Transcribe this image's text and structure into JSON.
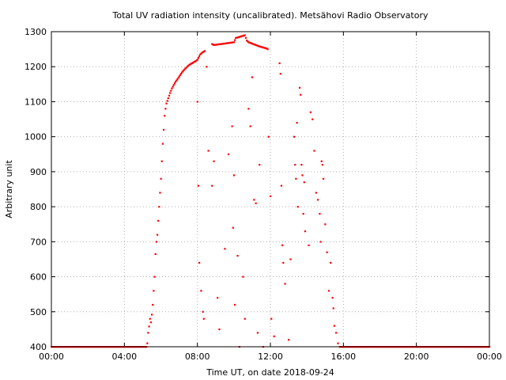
{
  "chart_data": {
    "type": "scatter",
    "title": "Total UV radiation intensity (uncalibrated). Metsähovi Radio Observatory",
    "xlabel": "Time UT, on date 2018-09-24",
    "ylabel": "Arbitrary unit",
    "xlim": [
      0,
      24
    ],
    "ylim": [
      400,
      1300
    ],
    "x_ticks": [
      {
        "value": 0,
        "label": "00:00"
      },
      {
        "value": 4,
        "label": "04:00"
      },
      {
        "value": 8,
        "label": "08:00"
      },
      {
        "value": 12,
        "label": "12:00"
      },
      {
        "value": 16,
        "label": "16:00"
      },
      {
        "value": 20,
        "label": "20:00"
      },
      {
        "value": 24,
        "label": "00:00"
      }
    ],
    "y_ticks": [
      400,
      500,
      600,
      700,
      800,
      900,
      1000,
      1100,
      1200,
      1300
    ],
    "grid": true,
    "marker_color": "#ff0000",
    "series": [
      {
        "baseline": [
          [
            0,
            400
          ],
          [
            0.5,
            400
          ],
          [
            1,
            400
          ],
          [
            1.5,
            400
          ],
          [
            2,
            400
          ],
          [
            2.5,
            400
          ],
          [
            3,
            400
          ],
          [
            3.5,
            400
          ],
          [
            4,
            400
          ],
          [
            4.5,
            400
          ],
          [
            5,
            400
          ],
          [
            5.2,
            400
          ],
          [
            15.8,
            400
          ],
          [
            16.2,
            400
          ],
          [
            16.6,
            400
          ],
          [
            17,
            400
          ],
          [
            17.5,
            400
          ],
          [
            18,
            400
          ],
          [
            18.5,
            400
          ],
          [
            19,
            400
          ],
          [
            19.5,
            400
          ],
          [
            20,
            400
          ],
          [
            20.5,
            400
          ],
          [
            21,
            400
          ],
          [
            21.5,
            400
          ],
          [
            22,
            400
          ],
          [
            22.5,
            400
          ],
          [
            23,
            400
          ],
          [
            23.5,
            400
          ],
          [
            24,
            400
          ]
        ],
        "rise": [
          [
            5.25,
            410
          ],
          [
            5.3,
            440
          ],
          [
            5.35,
            458
          ],
          [
            5.4,
            480
          ],
          [
            5.45,
            470
          ],
          [
            5.5,
            492
          ],
          [
            5.55,
            520
          ],
          [
            5.6,
            560
          ],
          [
            5.65,
            600
          ],
          [
            5.7,
            665
          ],
          [
            5.75,
            700
          ],
          [
            5.8,
            720
          ],
          [
            5.85,
            760
          ],
          [
            5.9,
            800
          ],
          [
            5.95,
            840
          ],
          [
            6.0,
            880
          ],
          [
            6.05,
            930
          ],
          [
            6.1,
            980
          ],
          [
            6.15,
            1020
          ],
          [
            6.2,
            1060
          ],
          [
            6.25,
            1080
          ],
          [
            6.3,
            1095
          ],
          [
            6.4,
            1110
          ],
          [
            6.5,
            1125
          ],
          [
            6.6,
            1138
          ],
          [
            6.7,
            1148
          ],
          [
            6.8,
            1157
          ],
          [
            6.9,
            1164
          ],
          [
            7.0,
            1172
          ],
          [
            7.1,
            1180
          ],
          [
            7.2,
            1187
          ],
          [
            7.3,
            1193
          ],
          [
            7.4,
            1198
          ],
          [
            7.5,
            1203
          ],
          [
            7.6,
            1207
          ],
          [
            7.7,
            1210
          ],
          [
            7.8,
            1213
          ],
          [
            7.9,
            1216
          ],
          [
            8.0,
            1220
          ],
          [
            8.05,
            1225
          ],
          [
            8.15,
            1235
          ],
          [
            8.25,
            1240
          ],
          [
            8.4,
            1245
          ]
        ],
        "high": [
          [
            8.8,
            1265
          ],
          [
            8.9,
            1262
          ],
          [
            10.0,
            1270
          ],
          [
            10.1,
            1282
          ],
          [
            10.6,
            1290
          ],
          [
            10.7,
            1275
          ],
          [
            10.8,
            1270
          ],
          [
            10.9,
            1268
          ],
          [
            11.0,
            1266
          ],
          [
            11.2,
            1262
          ],
          [
            11.4,
            1258
          ],
          [
            11.6,
            1255
          ],
          [
            11.8,
            1252
          ],
          [
            11.85,
            1250
          ]
        ],
        "scatter": [
          [
            8.0,
            1100
          ],
          [
            8.05,
            860
          ],
          [
            8.1,
            640
          ],
          [
            8.2,
            560
          ],
          [
            8.3,
            500
          ],
          [
            8.35,
            480
          ],
          [
            8.5,
            1200
          ],
          [
            8.6,
            960
          ],
          [
            8.8,
            860
          ],
          [
            8.9,
            930
          ],
          [
            9.1,
            540
          ],
          [
            9.2,
            450
          ],
          [
            9.5,
            680
          ],
          [
            9.7,
            950
          ],
          [
            9.9,
            1030
          ],
          [
            9.95,
            740
          ],
          [
            10.0,
            890
          ],
          [
            10.05,
            520
          ],
          [
            10.2,
            660
          ],
          [
            10.3,
            400
          ],
          [
            10.5,
            600
          ],
          [
            10.6,
            480
          ],
          [
            10.8,
            1080
          ],
          [
            10.9,
            1030
          ],
          [
            11.0,
            1170
          ],
          [
            11.1,
            820
          ],
          [
            11.2,
            810
          ],
          [
            11.3,
            440
          ],
          [
            11.4,
            920
          ],
          [
            11.6,
            400
          ],
          [
            11.9,
            1000
          ],
          [
            12.0,
            830
          ],
          [
            12.05,
            480
          ],
          [
            12.2,
            430
          ],
          [
            12.5,
            1210
          ],
          [
            12.55,
            1180
          ],
          [
            12.6,
            860
          ],
          [
            12.65,
            690
          ],
          [
            12.7,
            640
          ],
          [
            12.8,
            580
          ],
          [
            13.0,
            420
          ],
          [
            13.1,
            650
          ],
          [
            13.3,
            1000
          ],
          [
            13.35,
            920
          ],
          [
            13.4,
            880
          ],
          [
            13.45,
            1040
          ],
          [
            13.5,
            800
          ],
          [
            13.6,
            1140
          ],
          [
            13.65,
            1120
          ],
          [
            13.7,
            920
          ],
          [
            13.75,
            890
          ],
          [
            13.8,
            780
          ],
          [
            13.85,
            870
          ],
          [
            13.9,
            730
          ],
          [
            14.1,
            690
          ],
          [
            14.2,
            1070
          ],
          [
            14.3,
            1050
          ],
          [
            14.4,
            960
          ],
          [
            14.5,
            840
          ],
          [
            14.6,
            820
          ],
          [
            14.7,
            780
          ],
          [
            14.75,
            700
          ],
          [
            14.8,
            930
          ],
          [
            14.85,
            920
          ],
          [
            14.9,
            880
          ],
          [
            15.0,
            750
          ],
          [
            15.1,
            670
          ],
          [
            15.2,
            560
          ],
          [
            15.3,
            640
          ],
          [
            15.4,
            540
          ],
          [
            15.45,
            510
          ],
          [
            15.5,
            460
          ],
          [
            15.6,
            440
          ],
          [
            15.7,
            410
          ]
        ]
      }
    ]
  }
}
